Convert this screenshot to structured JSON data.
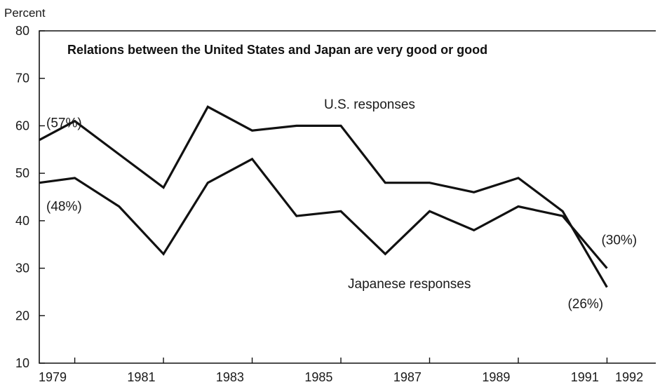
{
  "chart_data": {
    "type": "line",
    "title": "Relations between the United States and Japan are very good or good",
    "ylabel": "Percent",
    "xlabel": "",
    "ylim": [
      10,
      80
    ],
    "y_ticks": [
      10,
      20,
      30,
      40,
      50,
      60,
      70,
      80
    ],
    "x_range": [
      1978.7,
      1992.6
    ],
    "x_tick_labels": [
      "1979",
      "1981",
      "1983",
      "1985",
      "1987",
      "1989",
      "1991",
      "1992"
    ],
    "x_ticks": [
      1979.5,
      1981.5,
      1983.5,
      1985.5,
      1987.5,
      1989.5,
      1991.5
    ],
    "x_label_positions": [
      1979,
      1981,
      1983,
      1985,
      1987,
      1989,
      1991,
      1992
    ],
    "grid": false,
    "legend": "none",
    "series": [
      {
        "name": "U.S. responses",
        "x": [
          1978.7,
          1979.5,
          1980.5,
          1981.5,
          1982.5,
          1983.5,
          1984.5,
          1985.5,
          1986.5,
          1987.5,
          1988.5,
          1989.5,
          1990.5,
          1991.5
        ],
        "values": [
          57,
          61,
          54,
          47,
          64,
          59,
          60,
          60,
          48,
          48,
          46,
          49,
          42,
          26
        ],
        "color": "#111111"
      },
      {
        "name": "Japanese responses",
        "x": [
          1978.7,
          1979.5,
          1980.5,
          1981.5,
          1982.5,
          1983.5,
          1984.5,
          1985.5,
          1986.5,
          1987.5,
          1988.5,
          1989.5,
          1990.5,
          1991.5
        ],
        "values": [
          48,
          49,
          43,
          33,
          48,
          53,
          41,
          42,
          33,
          42,
          38,
          43,
          41,
          30
        ],
        "color": "#111111"
      }
    ],
    "annotations": [
      {
        "text": "(57%)",
        "x": 1978.7,
        "y": 57
      },
      {
        "text": "(48%)",
        "x": 1978.7,
        "y": 48
      },
      {
        "text": "(30%)",
        "x": 1991.5,
        "y": 30
      },
      {
        "text": "(26%)",
        "x": 1991.5,
        "y": 26
      }
    ]
  }
}
